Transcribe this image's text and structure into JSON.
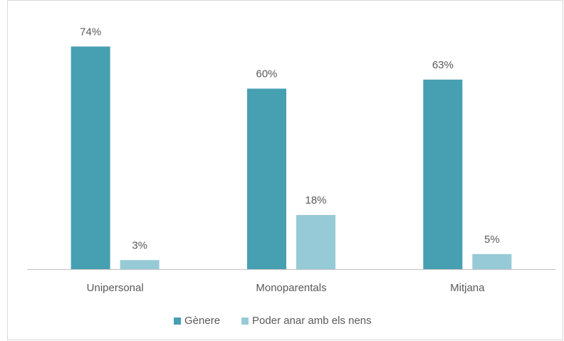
{
  "chart_data": {
    "type": "bar",
    "categories": [
      "Unipersonal",
      "Monoparentals",
      "Mitjana"
    ],
    "series": [
      {
        "name": "Gènere",
        "color": "#46a0b2",
        "values": [
          74,
          60,
          63
        ],
        "value_labels": [
          "74%",
          "60%",
          "63%"
        ]
      },
      {
        "name": "Poder anar amb els nens",
        "color": "#96cad6",
        "values": [
          3,
          18,
          5
        ],
        "value_labels": [
          "3%",
          "18%",
          "5%"
        ]
      }
    ],
    "ylim": [
      0,
      80
    ],
    "legend": "bottom"
  }
}
